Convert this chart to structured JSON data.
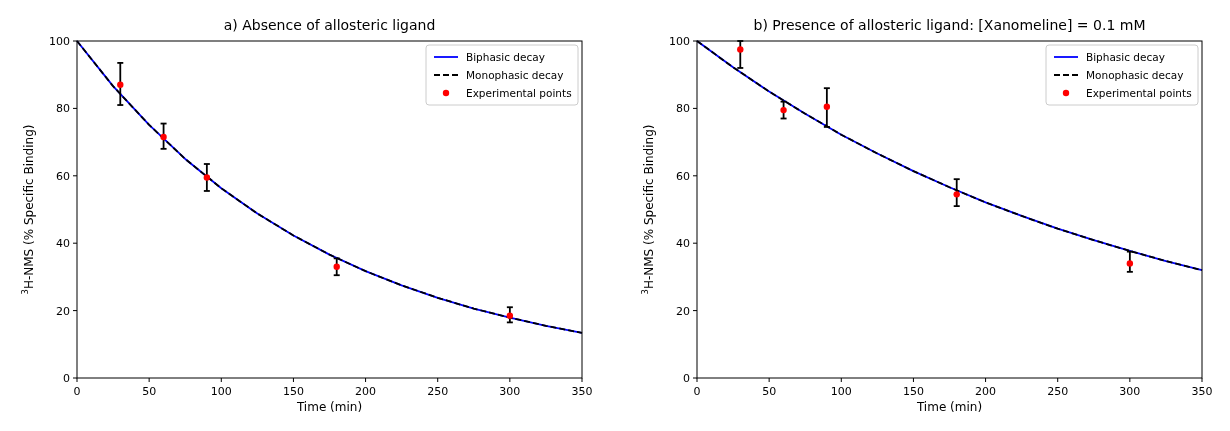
{
  "chart_data": [
    {
      "type": "line",
      "title": "a) Absence of allosteric ligand",
      "xlabel": "Time (min)",
      "ylabel": "$^{3}$H-NMS (% Specific Binding)",
      "xlim": [
        0,
        350
      ],
      "ylim": [
        0,
        100
      ],
      "xticks": [
        0,
        50,
        100,
        150,
        200,
        250,
        300,
        350
      ],
      "yticks": [
        0,
        20,
        40,
        60,
        80,
        100
      ],
      "grid": false,
      "legend": "top right",
      "series": [
        {
          "name": "Biphasic decay",
          "color": "#0000ff",
          "line_style": "solid",
          "x": [
            0,
            25,
            50,
            75,
            100,
            125,
            150,
            175,
            200,
            225,
            250,
            275,
            300,
            325,
            350
          ],
          "values": [
            100,
            86.6,
            75.1,
            65.0,
            56.3,
            48.8,
            42.3,
            36.6,
            31.7,
            27.5,
            23.8,
            20.6,
            17.9,
            15.5,
            13.4
          ]
        },
        {
          "name": "Monophasic decay",
          "color": "#000000",
          "line_style": "dashed",
          "x": [
            0,
            25,
            50,
            75,
            100,
            125,
            150,
            175,
            200,
            225,
            250,
            275,
            300,
            325,
            350
          ],
          "values": [
            100,
            86.6,
            75.1,
            65.0,
            56.3,
            48.8,
            42.3,
            36.6,
            31.7,
            27.5,
            23.8,
            20.6,
            17.9,
            15.5,
            13.4
          ]
        },
        {
          "name": "Experimental points",
          "type": "scatter",
          "color": "#ff0000",
          "marker": "circle",
          "x": [
            30,
            60,
            90,
            180,
            300
          ],
          "values": [
            87,
            71.5,
            59.5,
            33,
            18.5
          ],
          "errors": [
            [
              81,
              93.5
            ],
            [
              68,
              75.5
            ],
            [
              55.5,
              63.5
            ],
            [
              30.5,
              35.5
            ],
            [
              16.5,
              21
            ]
          ]
        }
      ]
    },
    {
      "type": "line",
      "title": "b) Presence of allosteric ligand: [Xanomeline] = 0.1 mM",
      "xlabel": "Time (min)",
      "ylabel": "$^{3}$H-NMS (% Specific Binding)",
      "xlim": [
        0,
        350
      ],
      "ylim": [
        0,
        100
      ],
      "xticks": [
        0,
        50,
        100,
        150,
        200,
        250,
        300,
        350
      ],
      "yticks": [
        0,
        20,
        40,
        60,
        80,
        100
      ],
      "grid": false,
      "legend": "top right",
      "series": [
        {
          "name": "Biphasic decay",
          "color": "#0000ff",
          "line_style": "solid",
          "x": [
            0,
            25,
            50,
            75,
            100,
            125,
            150,
            175,
            200,
            225,
            250,
            275,
            300,
            325,
            350
          ],
          "values": [
            100,
            92.2,
            85.0,
            78.4,
            72.2,
            66.6,
            61.4,
            56.6,
            52.1,
            48.1,
            44.3,
            40.9,
            37.7,
            34.7,
            32.0
          ]
        },
        {
          "name": "Monophasic decay",
          "color": "#000000",
          "line_style": "dashed",
          "x": [
            0,
            25,
            50,
            75,
            100,
            125,
            150,
            175,
            200,
            225,
            250,
            275,
            300,
            325,
            350
          ],
          "values": [
            100,
            92.2,
            85.0,
            78.4,
            72.2,
            66.6,
            61.4,
            56.6,
            52.1,
            48.1,
            44.3,
            40.9,
            37.7,
            34.7,
            32.0
          ]
        },
        {
          "name": "Experimental points",
          "type": "scatter",
          "color": "#ff0000",
          "marker": "circle",
          "x": [
            30,
            60,
            90,
            180,
            300
          ],
          "values": [
            97.5,
            79.5,
            80.5,
            54.5,
            34
          ],
          "errors": [
            [
              92,
              100
            ],
            [
              77,
              82
            ],
            [
              74.5,
              86
            ],
            [
              51,
              59
            ],
            [
              31.5,
              37.5
            ]
          ]
        }
      ]
    }
  ]
}
